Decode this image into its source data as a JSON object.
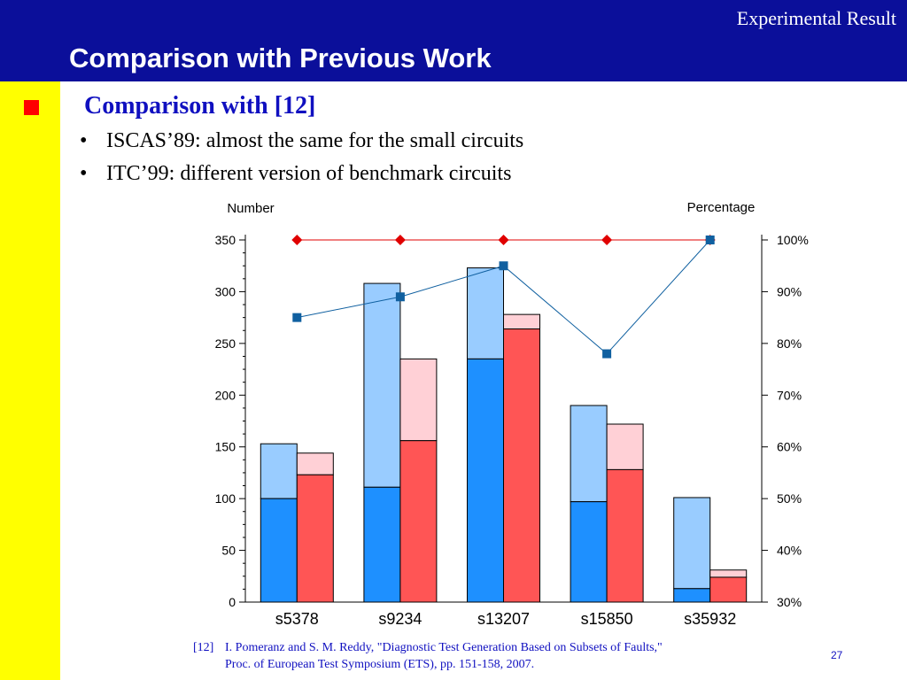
{
  "header": {
    "section": "Experimental Result",
    "title": "Comparison with Previous Work"
  },
  "content": {
    "heading": "Comparison with [12]",
    "bullets": [
      "ISCAS’89: almost the same for the small circuits",
      "ITC’99: different version of benchmark circuits"
    ]
  },
  "footnote": {
    "ref": "[12]",
    "line1": "I. Pomeranz and S. M. Reddy, \"Diagnostic Test Generation Based on Subsets of Faults,\"",
    "line2": "Proc. of European Test Symposium (ETS), pp. 151-158, 2007."
  },
  "page_number": "27",
  "chart_data": {
    "type": "bar",
    "left_axis_label": "Number",
    "right_axis_label": "Percentage",
    "categories": [
      "s5378",
      "s9234",
      "s13207",
      "s15850",
      "s35932"
    ],
    "ylim": [
      0,
      350
    ],
    "yticks": [
      0,
      50,
      100,
      150,
      200,
      250,
      300,
      350
    ],
    "y2lim": [
      30,
      100
    ],
    "y2ticks": [
      "30%",
      "40%",
      "50%",
      "60%",
      "70%",
      "80%",
      "90%",
      "100%"
    ],
    "bar_groups": [
      {
        "stack_total": [
          153,
          308,
          323,
          190,
          101
        ],
        "stack_base": [
          100,
          111,
          235,
          97,
          13
        ],
        "total_color": "#99ccff",
        "base_color": "#1e90ff"
      },
      {
        "stack_total": [
          144,
          235,
          278,
          172,
          31
        ],
        "stack_base": [
          123,
          156,
          264,
          128,
          24
        ],
        "total_color": "#ffd0d6",
        "base_color": "#ff5555"
      }
    ],
    "line_series": [
      {
        "values": [
          100,
          100,
          100,
          100,
          100
        ],
        "color": "#e00000",
        "marker": "diamond"
      },
      {
        "values": [
          85,
          89,
          95,
          78,
          100
        ],
        "color": "#1060a0",
        "marker": "square"
      }
    ],
    "grid": false
  }
}
